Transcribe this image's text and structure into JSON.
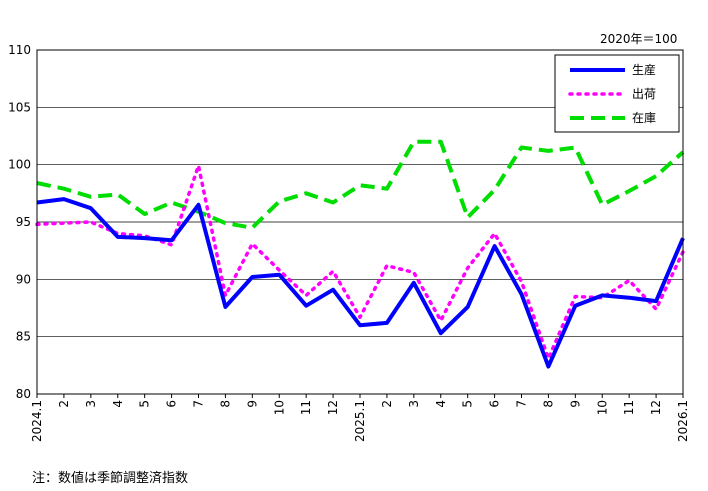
{
  "chart_data": {
    "type": "line",
    "unit_label": "2020年＝100",
    "footnote": "注：数値は季節調整済指数",
    "categories": [
      "2024.1",
      "2",
      "3",
      "4",
      "5",
      "6",
      "7",
      "8",
      "9",
      "10",
      "11",
      "12",
      "2025.1",
      "2",
      "3",
      "4",
      "5",
      "6",
      "7",
      "8",
      "9",
      "10",
      "11",
      "12",
      "2026.1"
    ],
    "ylim": [
      80,
      110
    ],
    "yticks": [
      80,
      85,
      90,
      95,
      100,
      105,
      110
    ],
    "grid": "horizontal",
    "legend_position": "top-right",
    "series": [
      {
        "name": "生産",
        "color": "#0000ff",
        "style": "solid",
        "values": [
          96.7,
          97.0,
          96.2,
          93.7,
          93.6,
          93.4,
          96.5,
          87.6,
          90.2,
          90.4,
          87.7,
          89.1,
          86.0,
          86.2,
          89.7,
          85.3,
          87.6,
          92.9,
          88.7,
          82.4,
          87.7,
          88.6,
          88.4,
          88.1,
          93.6
        ]
      },
      {
        "name": "出荷",
        "color": "#ff00ff",
        "style": "dotted",
        "values": [
          94.8,
          94.9,
          95.0,
          94.0,
          93.8,
          93.0,
          99.9,
          88.6,
          93.1,
          90.8,
          88.6,
          90.7,
          86.7,
          91.2,
          90.6,
          86.4,
          91.0,
          94.0,
          89.8,
          83.1,
          88.5,
          88.4,
          89.9,
          87.4,
          92.4
        ]
      },
      {
        "name": "在庫",
        "color": "#00dd00",
        "style": "dashed",
        "values": [
          98.4,
          97.9,
          97.2,
          97.4,
          95.7,
          96.7,
          95.9,
          94.9,
          94.5,
          96.8,
          97.5,
          96.7,
          98.2,
          97.9,
          102.0,
          102.0,
          95.4,
          97.8,
          101.5,
          101.2,
          101.5,
          96.5,
          97.7,
          99.0,
          101.1
        ]
      }
    ]
  }
}
